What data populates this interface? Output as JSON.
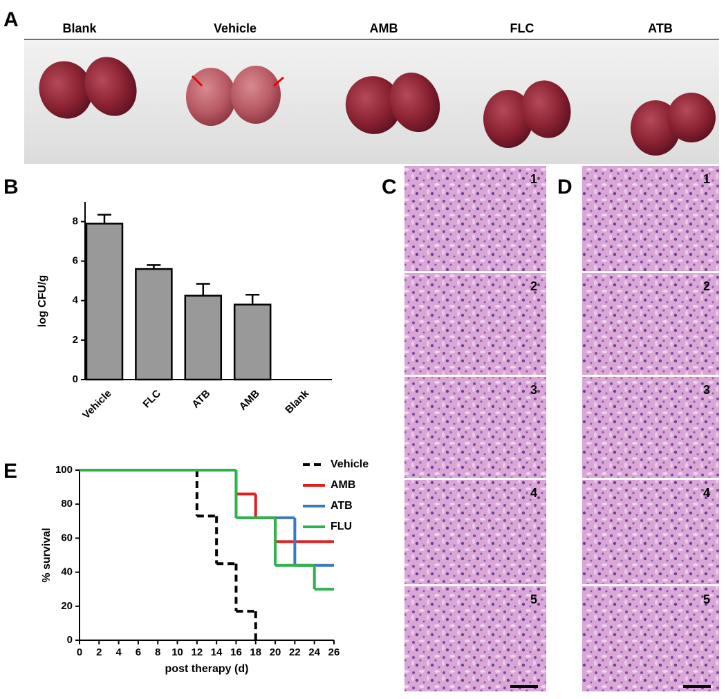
{
  "panel_labels": {
    "a": "A",
    "b": "B",
    "c": "C",
    "d": "D",
    "e": "E"
  },
  "kidney_groups": [
    "Blank",
    "Vehicle",
    "AMB",
    "FLC",
    "ATB"
  ],
  "histology_c": [
    "1",
    "2",
    "3",
    "4",
    "5"
  ],
  "histology_d": [
    "1",
    "2",
    "3",
    "4",
    "5"
  ],
  "chart_data": [
    {
      "type": "bar",
      "ylabel": "log CFU/g",
      "categories": [
        "Vehicle",
        "FLC",
        "ATB",
        "AMB",
        "Blank"
      ],
      "values": [
        7.9,
        5.6,
        4.25,
        3.8,
        0
      ],
      "errors": [
        0.45,
        0.2,
        0.6,
        0.5,
        0
      ],
      "color": "#999999",
      "ylim": [
        0,
        9
      ],
      "yticks": [
        0,
        2,
        4,
        6,
        8
      ]
    },
    {
      "type": "step",
      "xlabel": "post therapy (d)",
      "ylabel": "% survival",
      "xlim": [
        0,
        26
      ],
      "ylim": [
        0,
        100
      ],
      "xticks": [
        0,
        2,
        4,
        6,
        8,
        10,
        12,
        14,
        16,
        18,
        20,
        22,
        24,
        26
      ],
      "yticks": [
        0,
        20,
        40,
        60,
        80,
        100
      ],
      "series": [
        {
          "name": "Vehicle",
          "color": "#000000",
          "dashed": true,
          "x": [
            0,
            12,
            14,
            16,
            18
          ],
          "values": [
            100,
            73,
            45,
            17,
            0
          ]
        },
        {
          "name": "AMB",
          "color": "#e02020",
          "dashed": false,
          "x": [
            0,
            16,
            18,
            20,
            26
          ],
          "values": [
            100,
            86,
            72,
            58,
            58
          ]
        },
        {
          "name": "ATB",
          "color": "#3b78c4",
          "dashed": false,
          "x": [
            0,
            16,
            22,
            26
          ],
          "values": [
            100,
            72,
            44,
            44
          ]
        },
        {
          "name": "FLU",
          "color": "#2db34a",
          "dashed": false,
          "x": [
            0,
            16,
            20,
            24,
            26
          ],
          "values": [
            100,
            72,
            44,
            30,
            30
          ]
        }
      ]
    }
  ]
}
